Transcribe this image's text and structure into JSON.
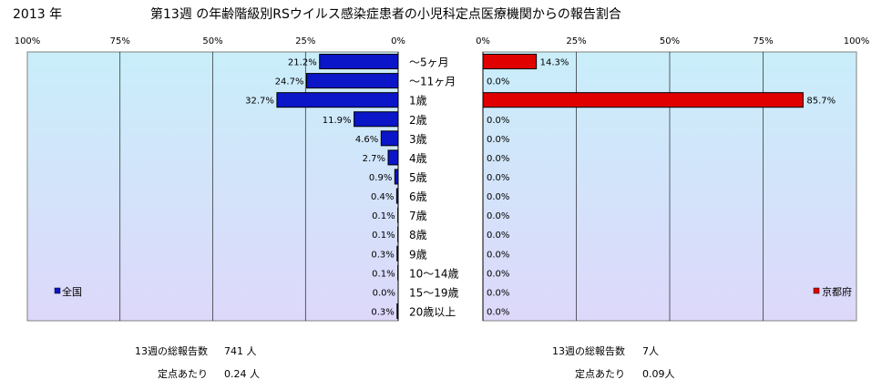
{
  "header": {
    "year_label": "2013 年",
    "title": "第13週 の年齢階級別RSウイルス感染症患者の小児科定点医療機関からの報告割合"
  },
  "chart_data": [
    {
      "type": "bar",
      "orientation": "horizontal",
      "x_direction": "reversed",
      "categories": [
        "～5ヶ月",
        "～11ヶ月",
        "1歳",
        "2歳",
        "3歳",
        "4歳",
        "5歳",
        "6歳",
        "7歳",
        "8歳",
        "9歳",
        "10～14歳",
        "15～19歳",
        "20歳以上"
      ],
      "series": [
        {
          "name": "全国",
          "values": [
            21.2,
            24.7,
            32.7,
            11.9,
            4.6,
            2.7,
            0.9,
            0.4,
            0.1,
            0.1,
            0.3,
            0.1,
            0.0,
            0.3
          ],
          "value_labels": [
            "21.2%",
            "24.7%",
            "32.7%",
            "11.9%",
            "4.6%",
            "2.7%",
            "0.9%",
            "0.4%",
            "0.1%",
            "0.1%",
            "0.3%",
            "0.1%",
            "0.0%",
            "0.3%"
          ]
        }
      ],
      "xlim": [
        0,
        100
      ],
      "x_ticks": [
        100,
        75,
        50,
        25,
        0
      ],
      "x_tick_labels": [
        "100%",
        "75%",
        "50%",
        "25%",
        "0%"
      ],
      "legend_position": "bottom-left",
      "grid": true,
      "colors": {
        "bar": "#0a16c8",
        "bar_edge": "#000000",
        "plot_bg_top": "#c9eefa",
        "plot_bg_bottom": "#ddd8fa",
        "grid": "#000000"
      },
      "summary": [
        {
          "label": "13週の総報告数",
          "value": "741 人"
        },
        {
          "label": "定点あたり",
          "value": "0.24 人"
        }
      ]
    },
    {
      "type": "bar",
      "orientation": "horizontal",
      "categories": [
        "～5ヶ月",
        "～11ヶ月",
        "1歳",
        "2歳",
        "3歳",
        "4歳",
        "5歳",
        "6歳",
        "7歳",
        "8歳",
        "9歳",
        "10～14歳",
        "15～19歳",
        "20歳以上"
      ],
      "series": [
        {
          "name": "京都府",
          "values": [
            14.3,
            0.0,
            85.7,
            0.0,
            0.0,
            0.0,
            0.0,
            0.0,
            0.0,
            0.0,
            0.0,
            0.0,
            0.0,
            0.0
          ],
          "value_labels": [
            "14.3%",
            "0.0%",
            "85.7%",
            "0.0%",
            "0.0%",
            "0.0%",
            "0.0%",
            "0.0%",
            "0.0%",
            "0.0%",
            "0.0%",
            "0.0%",
            "0.0%",
            "0.0%"
          ]
        }
      ],
      "xlim": [
        0,
        100
      ],
      "x_ticks": [
        0,
        25,
        50,
        75,
        100
      ],
      "x_tick_labels": [
        "0%",
        "25%",
        "50%",
        "75%",
        "100%"
      ],
      "legend_position": "bottom-right",
      "grid": true,
      "colors": {
        "bar": "#e00000",
        "bar_edge": "#000000",
        "plot_bg_top": "#c9eefa",
        "plot_bg_bottom": "#ddd8fa",
        "grid": "#000000"
      },
      "summary": [
        {
          "label": "13週の総報告数",
          "value": "7人"
        },
        {
          "label": "定点あたり",
          "value": "0.09人"
        }
      ]
    }
  ]
}
